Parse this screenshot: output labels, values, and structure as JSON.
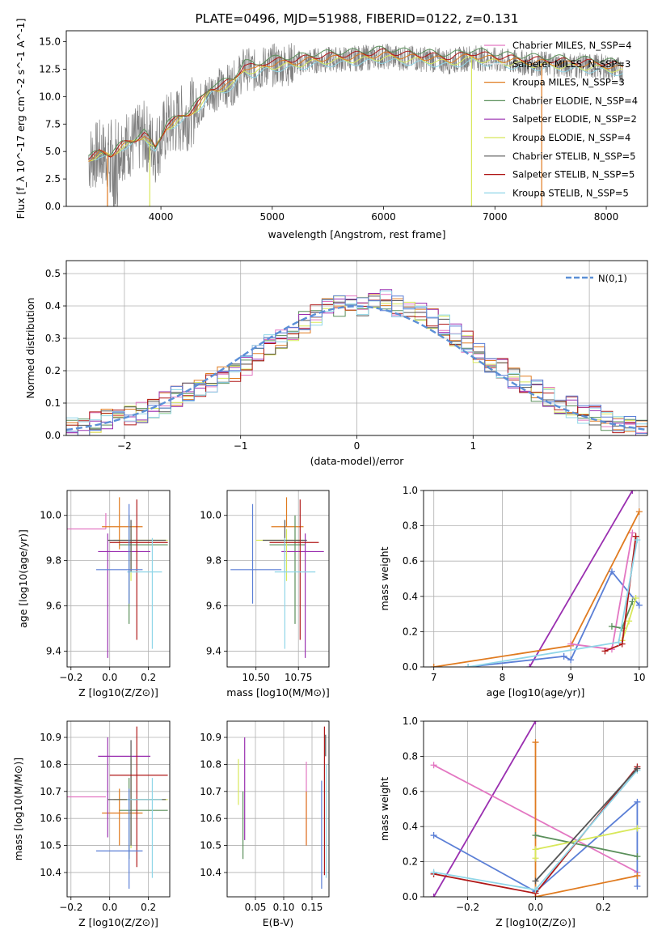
{
  "title": "PLATE=0496, MJD=51988, FIBERID=0122, z=0.131",
  "colors": {
    "chabrier_miles": "#e377c2",
    "salpeter_miles": "#f0f0f0",
    "kroupa_miles": "#e07b20",
    "chabrier_elodie": "#5a8f5a",
    "salpeter_elodie": "#9a2fb0",
    "kroupa_elodie": "#d8e85a",
    "chabrier_stelib": "#555555",
    "salpeter_stelib": "#b01818",
    "kroupa_stelib": "#8fd6e8",
    "blue_model": "#5b7fd6",
    "data_grey": "#808080",
    "gaussian": "#5b8fd6"
  },
  "chart_data": [
    {
      "id": "spectrum",
      "type": "line",
      "title": "PLATE=0496, MJD=51988, FIBERID=0122, z=0.131",
      "xlabel": "wavelength [Angstrom, rest frame]",
      "ylabel": "Flux [f_λ 10^-17 erg cm^-2 s^-1 A^-1]",
      "xlim": [
        3150,
        8370
      ],
      "ylim": [
        0,
        16
      ],
      "xticks": [
        "4000",
        "5000",
        "6000",
        "7000",
        "8000"
      ],
      "yticks": [
        "0.0",
        "2.5",
        "5.0",
        "7.5",
        "10.0",
        "12.5",
        "15.0"
      ],
      "grid": false,
      "legend_position": "right",
      "data_series": {
        "name": "",
        "x": [
          3350,
          3450,
          3550,
          3650,
          3750,
          3850,
          3950,
          4050,
          4150,
          4250,
          4350,
          4450,
          4550,
          4650,
          4750,
          4850,
          4950,
          5050,
          5200,
          5400,
          5600,
          5800,
          6000,
          6200,
          6400,
          6600,
          6800,
          7000,
          7200,
          7400,
          7600,
          7800,
          8000,
          8150
        ],
        "y": [
          4.3,
          4.8,
          4.6,
          5.5,
          5.8,
          6.5,
          5.2,
          7.2,
          7.8,
          8.3,
          9.3,
          10.5,
          10.8,
          11.2,
          12.6,
          12.3,
          12.8,
          12.9,
          13.0,
          13.3,
          13.4,
          13.5,
          13.7,
          13.5,
          13.4,
          13.2,
          13.6,
          13.3,
          13.1,
          13.0,
          12.9,
          12.8,
          12.7,
          12.4
        ]
      },
      "legend": [
        "Chabrier MILES, N_SSP=4",
        "Salpeter MILES, N_SSP=3",
        "Kroupa MILES, N_SSP=3",
        "Chabrier ELODIE, N_SSP=4",
        "Salpeter ELODIE, N_SSP=2",
        "Kroupa ELODIE, N_SSP=4",
        "Chabrier STELIB, N_SSP=5",
        "Salpeter STELIB, N_SSP=5",
        "Kroupa STELIB, N_SSP=5"
      ]
    },
    {
      "id": "residuals",
      "type": "bar",
      "xlabel": "(data-model)/error",
      "ylabel": "Normed distribution",
      "xlim": [
        -2.5,
        2.5
      ],
      "ylim": [
        0,
        0.54
      ],
      "xticks": [
        "−2",
        "−1",
        "0",
        "1",
        "2"
      ],
      "yticks": [
        "0.0",
        "0.1",
        "0.2",
        "0.3",
        "0.4",
        "0.5"
      ],
      "grid": true,
      "legend": [
        "N(0,1)"
      ],
      "legend_position": "top-right",
      "bin_width": 0.1,
      "bin_start": -2.5,
      "histogram_values": [
        0.02,
        0.02,
        0.04,
        0.05,
        0.05,
        0.06,
        0.07,
        0.08,
        0.1,
        0.12,
        0.13,
        0.14,
        0.16,
        0.18,
        0.2,
        0.22,
        0.25,
        0.28,
        0.3,
        0.32,
        0.35,
        0.37,
        0.39,
        0.4,
        0.41,
        0.4,
        0.41,
        0.42,
        0.4,
        0.39,
        0.38,
        0.36,
        0.34,
        0.31,
        0.29,
        0.26,
        0.23,
        0.21,
        0.18,
        0.16,
        0.14,
        0.12,
        0.1,
        0.09,
        0.07,
        0.06,
        0.05,
        0.04,
        0.03,
        0.02
      ]
    },
    {
      "id": "age_vs_Z",
      "type": "scatter",
      "xlabel": "Z [log10(Z/Z⊙)]",
      "ylabel": "age [log10(age/yr)]",
      "xlim": [
        -0.22,
        0.31
      ],
      "ylim": [
        9.33,
        10.11
      ],
      "xticks": [
        "−0.2",
        "0.0",
        "0.2"
      ],
      "yticks": [
        "9.4",
        "9.6",
        "9.8",
        "10.0"
      ],
      "grid": true,
      "points": [
        {
          "x": -0.02,
          "y": 9.94,
          "xerr": [
            0.2,
            0.0
          ],
          "yerr": [
            0.0,
            0.07
          ],
          "color": "chabrier_miles"
        },
        {
          "x": 0.05,
          "y": 9.95,
          "xerr": [
            0.09,
            0.12
          ],
          "yerr": [
            0.1,
            0.13
          ],
          "color": "kroupa_miles"
        },
        {
          "x": 0.1,
          "y": 9.87,
          "xerr": [
            0.05,
            0.2
          ],
          "yerr": [
            0.35,
            0.13
          ],
          "color": "chabrier_elodie"
        },
        {
          "x": -0.01,
          "y": 9.84,
          "xerr": [
            0.05,
            0.22
          ],
          "yerr": [
            0.47,
            0.08
          ],
          "color": "salpeter_elodie"
        },
        {
          "x": 0.11,
          "y": 9.89,
          "xerr": [
            0.09,
            0.19
          ],
          "yerr": [
            0.18,
            0.05
          ],
          "color": "kroupa_elodie"
        },
        {
          "x": 0.11,
          "y": 9.89,
          "xerr": [
            0.12,
            0.18
          ],
          "yerr": [
            0.14,
            0.09
          ],
          "color": "chabrier_stelib"
        },
        {
          "x": 0.14,
          "y": 9.88,
          "xerr": [
            0.14,
            0.16
          ],
          "yerr": [
            0.43,
            0.19
          ],
          "color": "salpeter_stelib"
        },
        {
          "x": 0.22,
          "y": 9.75,
          "xerr": [
            0.13,
            0.05
          ],
          "yerr": [
            0.34,
            0.15
          ],
          "color": "kroupa_stelib"
        },
        {
          "x": 0.1,
          "y": 9.76,
          "xerr": [
            0.17,
            0.07
          ],
          "yerr": [
            0.15,
            0.29
          ],
          "color": "blue_model"
        }
      ]
    },
    {
      "id": "age_vs_mass",
      "type": "scatter",
      "xlabel": "mass [log10(M/M⊙)]",
      "ylabel": "",
      "xlim": [
        10.33,
        10.93
      ],
      "ylim": [
        9.33,
        10.11
      ],
      "xticks": [
        "10.50",
        "10.75"
      ],
      "yticks": [
        "9.4",
        "9.6",
        "9.8",
        "10.0"
      ],
      "grid": true,
      "points": [
        {
          "x": 10.68,
          "y": 9.95,
          "xerr": [
            0.09,
            0.1
          ],
          "yerr": [
            0.0,
            0.13
          ],
          "color": "kroupa_miles"
        },
        {
          "x": 10.73,
          "y": 9.87,
          "xerr": [
            0.15,
            0.06
          ],
          "yerr": [
            0.35,
            0.13
          ],
          "color": "chabrier_elodie"
        },
        {
          "x": 10.79,
          "y": 9.84,
          "xerr": [
            0.14,
            0.11
          ],
          "yerr": [
            0.47,
            0.08
          ],
          "color": "salpeter_elodie"
        },
        {
          "x": 10.68,
          "y": 9.89,
          "xerr": [
            0.18,
            0.1
          ],
          "yerr": [
            0.18,
            0.05
          ],
          "color": "kroupa_elodie"
        },
        {
          "x": 10.67,
          "y": 9.89,
          "xerr": [
            0.13,
            0.13
          ],
          "yerr": [
            0.14,
            0.09
          ],
          "color": "chabrier_stelib"
        },
        {
          "x": 10.76,
          "y": 9.88,
          "xerr": [
            0.18,
            0.11
          ],
          "yerr": [
            0.43,
            0.19
          ],
          "color": "salpeter_stelib"
        },
        {
          "x": 10.67,
          "y": 9.75,
          "xerr": [
            0.06,
            0.18
          ],
          "yerr": [
            0.34,
            0.15
          ],
          "color": "kroupa_stelib"
        },
        {
          "x": 10.48,
          "y": 9.76,
          "xerr": [
            0.13,
            0.17
          ],
          "yerr": [
            0.15,
            0.29
          ],
          "color": "blue_model"
        }
      ]
    },
    {
      "id": "massweight_vs_age",
      "type": "line",
      "xlabel": "age [log10(age/yr)]",
      "ylabel": "mass weight",
      "xlim": [
        6.85,
        10.12
      ],
      "ylim": [
        0,
        1
      ],
      "xticks": [
        "7",
        "8",
        "9",
        "10"
      ],
      "yticks": [
        "0.0",
        "0.2",
        "0.4",
        "0.6",
        "0.8",
        "1.0"
      ],
      "grid": true,
      "series": [
        {
          "color": "salpeter_elodie",
          "x": [
            8.4,
            9.9
          ],
          "y": [
            0.0,
            1.0
          ]
        },
        {
          "color": "kroupa_miles",
          "x": [
            7.0,
            9.0,
            10.0
          ],
          "y": [
            0.0,
            0.12,
            0.88
          ]
        },
        {
          "color": "blue_model",
          "x": [
            7.5,
            8.9,
            9.0,
            9.6,
            10.0
          ],
          "y": [
            0.0,
            0.06,
            0.04,
            0.54,
            0.35
          ]
        },
        {
          "color": "chabrier_miles",
          "x": [
            9.0,
            9.6,
            9.9
          ],
          "y": [
            0.13,
            0.1,
            0.76
          ]
        },
        {
          "color": "chabrier_elodie",
          "x": [
            9.6,
            9.75,
            9.9
          ],
          "y": [
            0.23,
            0.22,
            0.37
          ]
        },
        {
          "color": "kroupa_elodie",
          "x": [
            9.75,
            9.85,
            9.95
          ],
          "y": [
            0.15,
            0.26,
            0.39
          ]
        },
        {
          "color": "salpeter_stelib",
          "x": [
            9.5,
            9.75,
            9.95
          ],
          "y": [
            0.09,
            0.13,
            0.74
          ]
        },
        {
          "color": "kroupa_stelib",
          "x": [
            7.5,
            9.7,
            9.97
          ],
          "y": [
            0.0,
            0.14,
            0.72
          ]
        }
      ]
    },
    {
      "id": "mass_vs_Z",
      "type": "scatter",
      "xlabel": "Z [log10(Z/Z⊙)]",
      "ylabel": "mass [log10(M/M⊙)]",
      "xlim": [
        -0.22,
        0.31
      ],
      "ylim": [
        10.31,
        10.96
      ],
      "xticks": [
        "−0.2",
        "0.0",
        "0.2"
      ],
      "yticks": [
        "10.4",
        "10.5",
        "10.6",
        "10.7",
        "10.8",
        "10.9"
      ],
      "grid": true,
      "points": [
        {
          "x": -0.02,
          "y": 10.68,
          "xerr": [
            0.2,
            0.0
          ],
          "yerr": [
            0.0,
            0.0
          ],
          "color": "chabrier_miles"
        },
        {
          "x": 0.05,
          "y": 10.62,
          "xerr": [
            0.09,
            0.12
          ],
          "yerr": [
            0.12,
            0.09
          ],
          "color": "kroupa_miles"
        },
        {
          "x": 0.1,
          "y": 10.63,
          "xerr": [
            0.05,
            0.2
          ],
          "yerr": [
            0.18,
            0.12
          ],
          "color": "chabrier_elodie"
        },
        {
          "x": -0.01,
          "y": 10.83,
          "xerr": [
            0.05,
            0.22
          ],
          "yerr": [
            0.3,
            0.07
          ],
          "color": "salpeter_elodie"
        },
        {
          "x": 0.11,
          "y": 10.67,
          "xerr": [
            0.09,
            0.19
          ],
          "yerr": [
            0.18,
            0.15
          ],
          "color": "kroupa_elodie"
        },
        {
          "x": 0.11,
          "y": 10.67,
          "xerr": [
            0.12,
            0.18
          ],
          "yerr": [
            0.17,
            0.22
          ],
          "color": "chabrier_stelib"
        },
        {
          "x": 0.14,
          "y": 10.76,
          "xerr": [
            0.14,
            0.16
          ],
          "yerr": [
            0.34,
            0.18
          ],
          "color": "salpeter_stelib"
        },
        {
          "x": 0.22,
          "y": 10.67,
          "xerr": [
            0.13,
            0.05
          ],
          "yerr": [
            0.29,
            0.08
          ],
          "color": "kroupa_stelib"
        },
        {
          "x": 0.1,
          "y": 10.48,
          "xerr": [
            0.17,
            0.07
          ],
          "yerr": [
            0.14,
            0.23
          ],
          "color": "blue_model"
        }
      ]
    },
    {
      "id": "mass_vs_ebv",
      "type": "scatter",
      "xlabel": "E(B-V)",
      "ylabel": "",
      "xlim": [
        0.0,
        0.18
      ],
      "ylim": [
        10.31,
        10.96
      ],
      "xticks": [
        "0.05",
        "0.10",
        "0.15"
      ],
      "yticks": [
        "10.4",
        "10.5",
        "10.6",
        "10.7",
        "10.8",
        "10.9"
      ],
      "grid": true,
      "points": [
        {
          "x": 0.02,
          "y": 10.74,
          "yerr": [
            0.09,
            0.08
          ],
          "color": "kroupa_elodie"
        },
        {
          "x": 0.028,
          "y": 10.55,
          "yerr": [
            0.1,
            0.15
          ],
          "color": "chabrier_elodie"
        },
        {
          "x": 0.031,
          "y": 10.71,
          "yerr": [
            0.19,
            0.19
          ],
          "color": "salpeter_elodie"
        },
        {
          "x": 0.14,
          "y": 10.66,
          "yerr": [
            0.16,
            0.15
          ],
          "color": "chabrier_miles"
        },
        {
          "x": 0.14,
          "y": 10.6,
          "yerr": [
            0.1,
            0.1
          ],
          "color": "kroupa_miles"
        },
        {
          "x": 0.167,
          "y": 10.54,
          "yerr": [
            0.2,
            0.2
          ],
          "color": "blue_model"
        },
        {
          "x": 0.172,
          "y": 10.67,
          "yerr": [
            0.28,
            0.27
          ],
          "color": "salpeter_stelib"
        },
        {
          "x": 0.174,
          "y": 10.87,
          "yerr": [
            0.04,
            0.04
          ],
          "color": "chabrier_stelib"
        },
        {
          "x": 0.175,
          "y": 10.6,
          "yerr": [
            0.22,
            0.2
          ],
          "color": "kroupa_stelib"
        }
      ]
    },
    {
      "id": "massweight_vs_Z",
      "type": "line",
      "xlabel": "Z [log10(Z/Z⊙)]",
      "ylabel": "mass weight",
      "xlim": [
        -0.33,
        0.33
      ],
      "ylim": [
        0,
        1
      ],
      "xticks": [
        "−0.2",
        "0.0",
        "0.2"
      ],
      "yticks": [
        "0.0",
        "0.2",
        "0.4",
        "0.6",
        "0.8",
        "1.0"
      ],
      "grid": true,
      "series": [
        {
          "color": "salpeter_elodie",
          "x": [
            -0.3,
            0.0
          ],
          "y": [
            0.0,
            1.0
          ]
        },
        {
          "color": "chabrier_miles",
          "x": [
            -0.3,
            0.3
          ],
          "y": [
            0.75,
            0.14
          ]
        },
        {
          "color": "blue_model",
          "x": [
            -0.3,
            0.0,
            0.3,
            0.3
          ],
          "y": [
            0.35,
            0.03,
            0.54,
            0.06
          ]
        },
        {
          "color": "kroupa_miles",
          "x": [
            0.0,
            0.0,
            0.3
          ],
          "y": [
            0.88,
            0.0,
            0.12
          ]
        },
        {
          "color": "chabrier_elodie",
          "x": [
            0.0,
            0.3
          ],
          "y": [
            0.35,
            0.23
          ]
        },
        {
          "color": "kroupa_elodie",
          "x": [
            0.0,
            0.0,
            0.3
          ],
          "y": [
            0.22,
            0.27,
            0.39
          ]
        },
        {
          "color": "salpeter_stelib",
          "x": [
            -0.3,
            0.0,
            0.3
          ],
          "y": [
            0.13,
            0.02,
            0.74
          ]
        },
        {
          "color": "kroupa_stelib",
          "x": [
            -0.3,
            0.0,
            0.3
          ],
          "y": [
            0.14,
            0.04,
            0.72
          ]
        },
        {
          "color": "chabrier_stelib",
          "x": [
            0.0,
            0.3
          ],
          "y": [
            0.09,
            0.73
          ]
        }
      ]
    }
  ]
}
